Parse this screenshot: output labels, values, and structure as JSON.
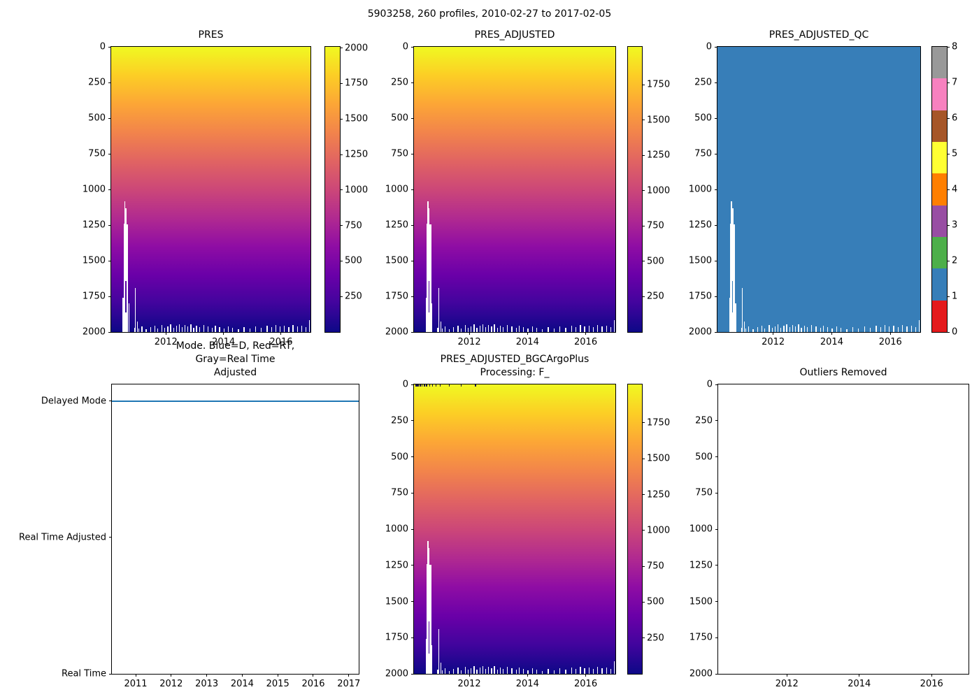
{
  "figure": {
    "title": "5903258, 260 profiles, 2010-02-27 to 2017-02-05"
  },
  "colors": {
    "plasma_r_stops": [
      "#f0f921",
      "#fcce25",
      "#fca636",
      "#f2844b",
      "#e16462",
      "#cc4778",
      "#b12a90",
      "#8f0da4",
      "#6a00a8",
      "#41049d",
      "#0d0887"
    ],
    "qc_set1": [
      "#e41a1c",
      "#377eb8",
      "#4daf4a",
      "#984ea3",
      "#ff7f00",
      "#ffff33",
      "#a65628",
      "#f781bf",
      "#999999"
    ],
    "qc_fill": "#377eb8",
    "mode_line": "#1f77b4",
    "missing": "#ffffff",
    "spine": "#000000"
  },
  "missing_data": {
    "bars": [
      [
        2010.5,
        0.028,
        1758,
        2000
      ],
      [
        2010.535,
        0.022,
        1240,
        2000
      ],
      [
        2010.565,
        0.014,
        1082,
        2000
      ],
      [
        2010.59,
        0.05,
        1132,
        1640
      ],
      [
        2010.59,
        0.05,
        1862,
        2000
      ],
      [
        2010.635,
        0.055,
        1245,
        2000
      ],
      [
        2010.705,
        0.016,
        1800,
        2000
      ],
      [
        2010.93,
        0.018,
        1692,
        2000
      ],
      [
        2011.005,
        0.013,
        1925,
        2000
      ]
    ],
    "bottom_noise": [
      [
        2010.55,
        35
      ],
      [
        2010.9,
        30
      ],
      [
        2011.05,
        25
      ],
      [
        2011.15,
        40
      ],
      [
        2011.3,
        20
      ],
      [
        2011.45,
        35
      ],
      [
        2011.6,
        45
      ],
      [
        2011.7,
        25
      ],
      [
        2011.85,
        50
      ],
      [
        2011.95,
        30
      ],
      [
        2012.05,
        40
      ],
      [
        2012.15,
        55
      ],
      [
        2012.25,
        30
      ],
      [
        2012.35,
        45
      ],
      [
        2012.45,
        55
      ],
      [
        2012.55,
        35
      ],
      [
        2012.65,
        50
      ],
      [
        2012.75,
        40
      ],
      [
        2012.85,
        55
      ],
      [
        2012.95,
        30
      ],
      [
        2013.05,
        45
      ],
      [
        2013.15,
        35
      ],
      [
        2013.3,
        50
      ],
      [
        2013.45,
        40
      ],
      [
        2013.6,
        30
      ],
      [
        2013.7,
        45
      ],
      [
        2013.85,
        35
      ],
      [
        2014.0,
        25
      ],
      [
        2014.15,
        40
      ],
      [
        2014.3,
        30
      ],
      [
        2014.5,
        20
      ],
      [
        2014.7,
        35
      ],
      [
        2014.9,
        25
      ],
      [
        2015.1,
        40
      ],
      [
        2015.3,
        30
      ],
      [
        2015.5,
        45
      ],
      [
        2015.65,
        35
      ],
      [
        2015.8,
        50
      ],
      [
        2015.95,
        40
      ],
      [
        2016.1,
        45
      ],
      [
        2016.25,
        35
      ],
      [
        2016.4,
        50
      ],
      [
        2016.55,
        40
      ],
      [
        2016.7,
        45
      ],
      [
        2016.85,
        35
      ],
      [
        2016.97,
        85
      ]
    ]
  },
  "chart_data": [
    {
      "id": "pres",
      "type": "heatmap",
      "title": "PRES",
      "fill": "plasma",
      "x_range": [
        2010.1,
        2017.02
      ],
      "x_ticks": [
        2012,
        2014,
        2016
      ],
      "y_down": true,
      "y_range": [
        0,
        2000
      ],
      "y_ticks": [
        0,
        250,
        500,
        750,
        1000,
        1250,
        1500,
        1750,
        2000
      ],
      "colorbar": {
        "style": "gradient",
        "range": [
          0,
          2008
        ],
        "ticks": [
          2000,
          1750,
          1500,
          1250,
          1000,
          750,
          500,
          250
        ]
      },
      "missing_ref": true
    },
    {
      "id": "pres_adj",
      "type": "heatmap",
      "title": "PRES_ADJUSTED",
      "fill": "plasma",
      "x_range": [
        2010.1,
        2017.02
      ],
      "x_ticks": [
        2012,
        2014,
        2016
      ],
      "y_down": true,
      "y_range": [
        0,
        2000
      ],
      "y_ticks": [
        0,
        250,
        500,
        750,
        1000,
        1250,
        1500,
        1750,
        2000
      ],
      "colorbar": {
        "style": "gradient",
        "range": [
          0,
          2018
        ],
        "ticks": [
          1750,
          1500,
          1250,
          1000,
          750,
          500,
          250
        ]
      },
      "missing_ref": true
    },
    {
      "id": "qc",
      "type": "heatmap",
      "title": "PRES_ADJUSTED_QC",
      "fill": "solid",
      "x_range": [
        2010.1,
        2017.02
      ],
      "x_ticks": [
        2012,
        2014,
        2016
      ],
      "y_down": true,
      "y_range": [
        0,
        2000
      ],
      "y_ticks": [
        0,
        250,
        500,
        750,
        1000,
        1250,
        1500,
        1750,
        2000
      ],
      "colorbar": {
        "style": "bands",
        "range": [
          0,
          8
        ],
        "ticks": [
          0,
          1,
          2,
          3,
          4,
          5,
          6,
          7,
          8
        ]
      },
      "missing_ref": true,
      "qc_value_shown": 1
    },
    {
      "id": "mode",
      "type": "line",
      "title": "Mode. Blue=D, Red=RT,\nGray=Real Time Adjusted",
      "x_range": [
        2010.33,
        2017.28
      ],
      "x_ticks": [
        2011,
        2012,
        2013,
        2014,
        2015,
        2016,
        2017
      ],
      "y_down": false,
      "y_range": [
        0,
        2.123
      ],
      "y_cat_ticks": [
        {
          "label": "Delayed Mode",
          "value": 2
        },
        {
          "label": "Real Time Adjusted",
          "value": 1
        },
        {
          "label": "Real Time",
          "value": 0
        }
      ],
      "series": [
        {
          "name": "mode-delayed-line",
          "color": "#1f77b4",
          "value": 2,
          "x_span": [
            2010.33,
            2017.28
          ]
        }
      ]
    },
    {
      "id": "bgc",
      "type": "heatmap",
      "title": "PRES_ADJUSTED_BGCArgoPlus\nProcessing: F_",
      "fill": "plasma",
      "x_range": [
        2010.1,
        2017.02
      ],
      "x_ticks": [
        2012,
        2014,
        2016
      ],
      "y_down": true,
      "y_range": [
        0,
        2000
      ],
      "y_ticks": [
        0,
        250,
        500,
        750,
        1000,
        1250,
        1500,
        1750,
        2000
      ],
      "colorbar": {
        "style": "gradient",
        "range": [
          0,
          2018
        ],
        "ticks": [
          1750,
          1500,
          1250,
          1000,
          750,
          500,
          250
        ]
      },
      "missing_ref": true,
      "top_marks": [
        [
          2010.16,
          0.05
        ],
        [
          2010.23,
          0.03
        ],
        [
          2010.3,
          0.04
        ],
        [
          2010.36,
          0.02
        ],
        [
          2010.44,
          0.05
        ],
        [
          2010.52,
          0.03
        ],
        [
          2010.62,
          0.04
        ],
        [
          2010.72,
          0.02
        ],
        [
          2010.85,
          0.03
        ],
        [
          2011.0,
          0.02
        ],
        [
          2011.3,
          0.03
        ],
        [
          2011.7,
          0.02
        ],
        [
          2012.2,
          0.03
        ]
      ]
    },
    {
      "id": "outliers",
      "type": "empty",
      "title": "Outliers Removed",
      "x_range": [
        2010.1,
        2017.02
      ],
      "x_ticks": [
        2012,
        2014,
        2016
      ],
      "y_down": true,
      "y_range": [
        0,
        2000
      ],
      "y_ticks": [
        0,
        250,
        500,
        750,
        1000,
        1250,
        1500,
        1750,
        2000
      ]
    }
  ]
}
